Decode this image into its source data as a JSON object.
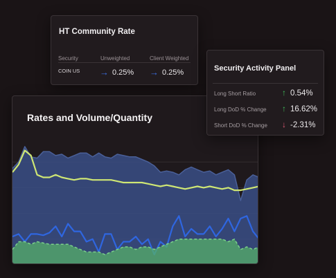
{
  "community_rate": {
    "title": "HT Community Rate",
    "headers": {
      "security": "Security",
      "unweighted": "Unweighted",
      "client_weighted": "Client Weighted"
    },
    "row": {
      "security": "COIN US",
      "unweighted": "0.25%",
      "client_weighted": "0.25%"
    },
    "arrow_icon": "arrow-right-icon",
    "arrow_color": "#3b6fe0"
  },
  "activity_panel": {
    "title": "Security Activity Panel",
    "rows": [
      {
        "label": "Long Short Ratio",
        "value": "0.54%",
        "direction": "up",
        "icon": "arrow-up-icon"
      },
      {
        "label": "Long DoD % Change",
        "value": "16.62%",
        "direction": "up",
        "icon": "arrow-up-icon"
      },
      {
        "label": "Short DoD % Change",
        "value": "-2.31%",
        "direction": "down",
        "icon": "arrow-down-icon"
      }
    ],
    "colors": {
      "up": "#3fbf5a",
      "down": "#e85b76"
    }
  },
  "chart": {
    "title": "Rates and Volume/Quantity"
  },
  "chart_data": {
    "type": "area",
    "title": "Rates and Volume/Quantity",
    "xlabel": "",
    "ylabel": "",
    "grid": true,
    "legend": "none",
    "ylim": [
      0,
      100
    ],
    "x": [
      0,
      1,
      2,
      3,
      4,
      5,
      6,
      7,
      8,
      9,
      10,
      11,
      12,
      13,
      14,
      15,
      16,
      17,
      18,
      19,
      20,
      21,
      22,
      23,
      24,
      25,
      26,
      27,
      28,
      29,
      30,
      31,
      32,
      33,
      34,
      35,
      36,
      37,
      38,
      39,
      40
    ],
    "series": [
      {
        "color": "#3a4f86",
        "style": "area",
        "values": [
          75,
          80,
          92,
          84,
          83,
          88,
          88,
          85,
          86,
          83,
          85,
          87,
          87,
          84,
          87,
          84,
          83,
          86,
          85,
          84,
          84,
          82,
          80,
          77,
          72,
          73,
          72,
          70,
          74,
          76,
          74,
          72,
          73,
          70,
          72,
          74,
          70,
          50,
          66,
          70,
          68
        ]
      },
      {
        "color": "#cfe774",
        "style": "line",
        "values": [
          72,
          78,
          89,
          85,
          70,
          68,
          68,
          70,
          68,
          67,
          66,
          67,
          67,
          66,
          66,
          66,
          66,
          65,
          64,
          64,
          64,
          64,
          63,
          62,
          61,
          62,
          61,
          60,
          59,
          60,
          61,
          60,
          61,
          60,
          59,
          60,
          58,
          58,
          59,
          60,
          61
        ]
      },
      {
        "color": "#2f66e0",
        "style": "line",
        "values": [
          22,
          24,
          18,
          24,
          24,
          23,
          25,
          30,
          22,
          32,
          26,
          26,
          18,
          20,
          10,
          24,
          24,
          12,
          18,
          18,
          22,
          16,
          20,
          8,
          18,
          14,
          30,
          38,
          22,
          28,
          24,
          24,
          30,
          22,
          28,
          36,
          26,
          36,
          38,
          26,
          20
        ]
      },
      {
        "color": "#55b06a",
        "style": "area-dashed",
        "values": [
          12,
          18,
          18,
          16,
          18,
          17,
          16,
          16,
          16,
          16,
          14,
          12,
          10,
          10,
          10,
          8,
          10,
          12,
          14,
          14,
          12,
          14,
          14,
          12,
          14,
          16,
          18,
          20,
          20,
          20,
          20,
          20,
          20,
          20,
          20,
          18,
          20,
          12,
          14,
          12,
          14
        ]
      }
    ]
  }
}
